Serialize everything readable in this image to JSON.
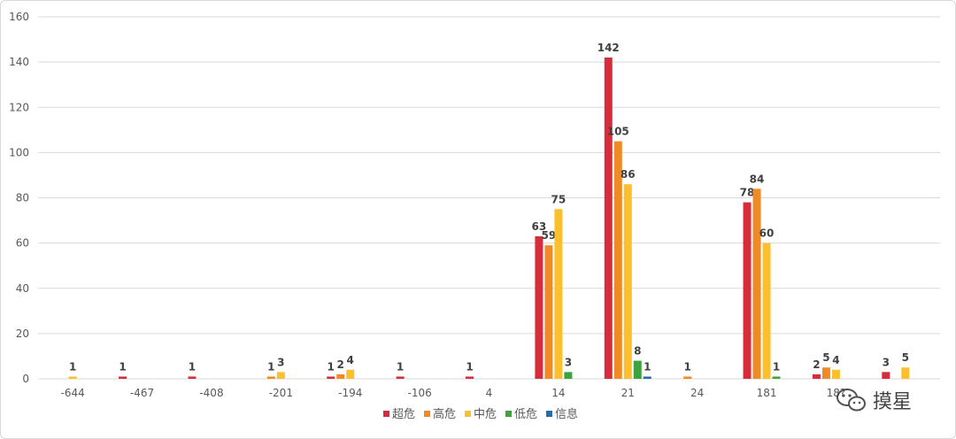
{
  "chart_data": {
    "type": "bar",
    "title": "",
    "xlabel": "",
    "ylabel": "",
    "ylim": [
      0,
      160
    ],
    "yticks": [
      0,
      20,
      40,
      60,
      80,
      100,
      120,
      140,
      160
    ],
    "grid": true,
    "legend_position": "bottom",
    "categories": [
      "-644",
      "-467",
      "-408",
      "-201",
      "-194",
      "-106",
      "4",
      "14",
      "21",
      "24",
      "181",
      "18?",
      ""
    ],
    "series": [
      {
        "name": "超危",
        "color": "#d62d3c",
        "values": [
          null,
          1,
          1,
          null,
          1,
          1,
          1,
          63,
          142,
          null,
          78,
          2,
          3
        ]
      },
      {
        "name": "高危",
        "color": "#f08a24",
        "values": [
          null,
          null,
          null,
          1,
          2,
          null,
          null,
          59,
          105,
          1,
          84,
          5,
          null
        ]
      },
      {
        "name": "中危",
        "color": "#fcc02e",
        "values": [
          1,
          null,
          null,
          3,
          4,
          null,
          null,
          75,
          86,
          null,
          60,
          4,
          5
        ]
      },
      {
        "name": "低危",
        "color": "#3da33d",
        "values": [
          null,
          null,
          null,
          null,
          null,
          null,
          null,
          3,
          8,
          null,
          1,
          null,
          null
        ]
      },
      {
        "name": "信息",
        "color": "#1f6fb5",
        "values": [
          null,
          null,
          null,
          null,
          null,
          null,
          null,
          null,
          1,
          null,
          null,
          null,
          null
        ]
      }
    ]
  },
  "watermark": {
    "text": "摸星",
    "icon": "wechat-icon"
  }
}
